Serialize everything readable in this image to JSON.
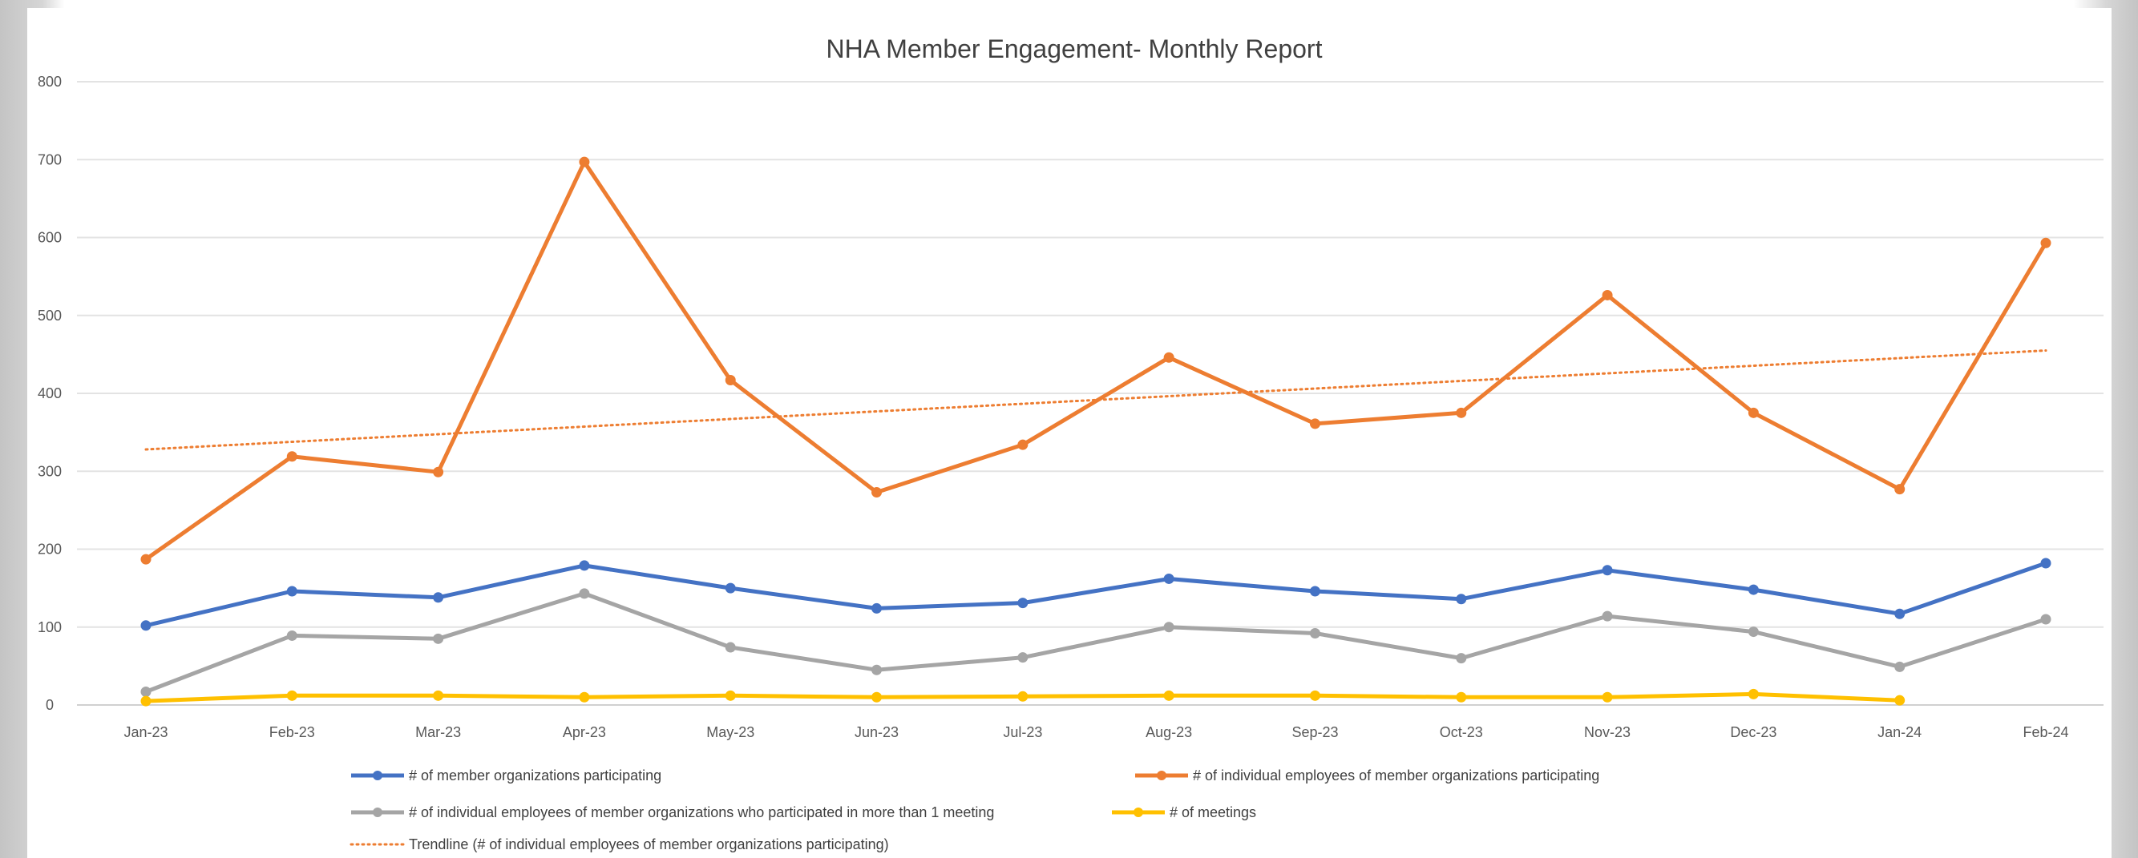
{
  "chart_data": {
    "type": "line",
    "title": "NHA Member Engagement- Monthly Report",
    "xlabel": "",
    "ylabel": "",
    "ylim": [
      0,
      800
    ],
    "yticks": [
      0,
      100,
      200,
      300,
      400,
      500,
      600,
      700,
      800
    ],
    "grid": true,
    "legend_position": "bottom",
    "categories": [
      "Jan-23",
      "Feb-23",
      "Mar-23",
      "Apr-23",
      "May-23",
      "Jun-23",
      "Jul-23",
      "Aug-23",
      "Sep-23",
      "Oct-23",
      "Nov-23",
      "Dec-23",
      "Jan-24",
      "Feb-24"
    ],
    "series": [
      {
        "name": "# of member organizations participating",
        "color": "#4472C4",
        "values": [
          102,
          146,
          138,
          179,
          150,
          124,
          131,
          162,
          146,
          136,
          173,
          148,
          117,
          182
        ]
      },
      {
        "name": "# of individual employees of member organizations participating",
        "color": "#ED7D31",
        "values": [
          187,
          319,
          299,
          697,
          417,
          273,
          334,
          446,
          361,
          375,
          526,
          375,
          277,
          593
        ]
      },
      {
        "name": "# of individual employees of member organizations who participated in more than 1 meeting",
        "color": "#A5A5A5",
        "values": [
          17,
          89,
          85,
          143,
          74,
          45,
          61,
          100,
          92,
          60,
          114,
          94,
          49,
          110
        ]
      },
      {
        "name": "# of meetings",
        "color": "#FFC000",
        "values": [
          5,
          12,
          12,
          10,
          12,
          10,
          11,
          12,
          12,
          10,
          10,
          14,
          6,
          null
        ]
      }
    ],
    "trendline": {
      "name": "Trendline (# of individual employees of member organizations participating)",
      "color": "#ED7D31",
      "start": 328,
      "end": 455
    }
  }
}
